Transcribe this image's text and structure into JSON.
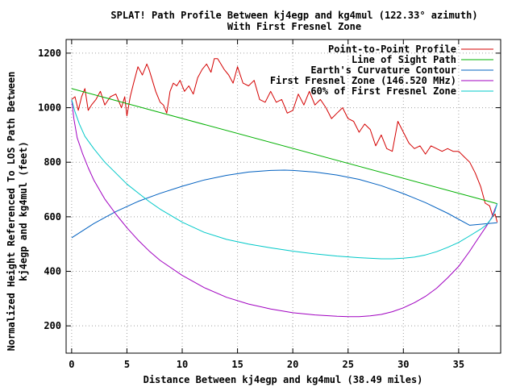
{
  "chart_data": {
    "type": "line",
    "title": "SPLAT! Path Profile Between kj4egp and kg4mul (122.33° azimuth)",
    "subtitle": "With First Fresnel Zone",
    "xlabel": "Distance Between kj4egp and kg4mul (38.49 miles)",
    "ylabel_line1": "Normalized Height Referenced To LOS Path Between",
    "ylabel_line2": "kj4egp and kg4mul (feet)",
    "xlim": [
      -0.5,
      38.8
    ],
    "ylim": [
      100,
      1250
    ],
    "xticks": [
      0,
      5,
      10,
      15,
      20,
      25,
      30,
      35
    ],
    "yticks": [
      200,
      400,
      600,
      800,
      1000,
      1200
    ],
    "grid": true,
    "legend_position": "top-right",
    "series": [
      {
        "name": "Point-to-Point Profile",
        "color": "#d40000",
        "x": [
          0,
          0.3,
          0.6,
          0.9,
          1.2,
          1.5,
          1.8,
          2.2,
          2.6,
          3.0,
          3.5,
          4.0,
          4.5,
          4.8,
          5.0,
          5.3,
          5.6,
          6.0,
          6.4,
          6.8,
          7.0,
          7.3,
          7.6,
          8.0,
          8.3,
          8.6,
          8.9,
          9.2,
          9.5,
          9.8,
          10.2,
          10.6,
          11.0,
          11.4,
          11.8,
          12.2,
          12.6,
          12.9,
          13.2,
          13.5,
          13.8,
          14.2,
          14.6,
          15.0,
          15.5,
          16.0,
          16.5,
          17.0,
          17.5,
          18.0,
          18.5,
          19.0,
          19.5,
          20.0,
          20.5,
          21.0,
          21.5,
          22.0,
          22.5,
          23.0,
          23.5,
          24.0,
          24.5,
          25.0,
          25.5,
          26.0,
          26.5,
          27.0,
          27.5,
          28.0,
          28.5,
          29.0,
          29.5,
          30.0,
          30.5,
          31.0,
          31.5,
          32.0,
          32.5,
          33.0,
          33.5,
          34.0,
          34.5,
          35.0,
          35.5,
          36.0,
          36.5,
          37.0,
          37.4,
          37.8,
          38.1,
          38.3,
          38.49
        ],
        "y": [
          1030,
          1040,
          990,
          1040,
          1070,
          990,
          1010,
          1030,
          1060,
          1010,
          1040,
          1050,
          1000,
          1040,
          970,
          1040,
          1090,
          1150,
          1120,
          1160,
          1140,
          1100,
          1060,
          1020,
          1010,
          980,
          1060,
          1090,
          1080,
          1100,
          1060,
          1080,
          1050,
          1110,
          1140,
          1160,
          1130,
          1180,
          1180,
          1160,
          1140,
          1120,
          1090,
          1150,
          1090,
          1080,
          1100,
          1030,
          1020,
          1060,
          1020,
          1030,
          980,
          990,
          1050,
          1010,
          1060,
          1010,
          1030,
          1000,
          960,
          980,
          1000,
          960,
          950,
          910,
          940,
          920,
          860,
          900,
          850,
          840,
          950,
          910,
          870,
          850,
          860,
          830,
          860,
          850,
          840,
          850,
          840,
          840,
          820,
          800,
          760,
          710,
          650,
          640,
          600,
          610,
          580
        ]
      },
      {
        "name": "Line of Sight Path",
        "color": "#00b000",
        "x": [
          0,
          38.49
        ],
        "y": [
          1070,
          648
        ]
      },
      {
        "name": "Earth's Curvature Contour",
        "color": "#0060c0",
        "x": [
          0,
          2,
          4,
          6,
          8,
          10,
          12,
          14,
          16,
          18,
          19.25,
          20,
          22,
          24,
          26,
          28,
          30,
          32,
          34,
          36,
          38.49
        ],
        "y": [
          523,
          575,
          619,
          656,
          686,
          712,
          735,
          752,
          764,
          770,
          771,
          770,
          764,
          753,
          737,
          714,
          685,
          652,
          613,
          569,
          578
        ]
      },
      {
        "name": "First Fresnel Zone (146.520 MHz)",
        "color": "#a000c0",
        "x": [
          0,
          0.2,
          0.5,
          1.0,
          1.5,
          2.0,
          3.0,
          4.0,
          5.0,
          6.0,
          7.0,
          8.0,
          10.0,
          12.0,
          14.0,
          16.0,
          18.0,
          20.0,
          22.0,
          24.0,
          25.0,
          26.0,
          27.0,
          28.0,
          29.0,
          30.0,
          31.0,
          32.0,
          33.0,
          34.0,
          35.0,
          36.0,
          36.5,
          37.0,
          37.5,
          38.0,
          38.3,
          38.49
        ],
        "y": [
          1030,
          960,
          890,
          830,
          780,
          735,
          665,
          610,
          560,
          515,
          475,
          440,
          385,
          340,
          305,
          280,
          262,
          248,
          240,
          235,
          234,
          234,
          237,
          242,
          252,
          266,
          285,
          308,
          338,
          376,
          418,
          474,
          505,
          535,
          565,
          598,
          630,
          648
        ]
      },
      {
        "name": "60% of First Fresnel Zone",
        "color": "#00c8c8",
        "x": [
          0,
          0.3,
          0.7,
          1.2,
          2.0,
          3.0,
          4.0,
          5.0,
          6.0,
          7.0,
          8.0,
          10.0,
          12.0,
          14.0,
          16.0,
          18.0,
          20.0,
          22.0,
          24.0,
          26.0,
          28.0,
          29.0,
          30.0,
          31.0,
          32.0,
          33.0,
          34.0,
          35.0,
          36.0,
          37.0,
          37.5,
          38.0,
          38.3,
          38.49
        ],
        "y": [
          1030,
          985,
          940,
          895,
          850,
          800,
          760,
          720,
          688,
          656,
          628,
          580,
          543,
          517,
          500,
          486,
          474,
          464,
          456,
          450,
          446,
          446,
          448,
          452,
          460,
          472,
          488,
          506,
          530,
          555,
          570,
          595,
          622,
          648
        ]
      }
    ]
  }
}
